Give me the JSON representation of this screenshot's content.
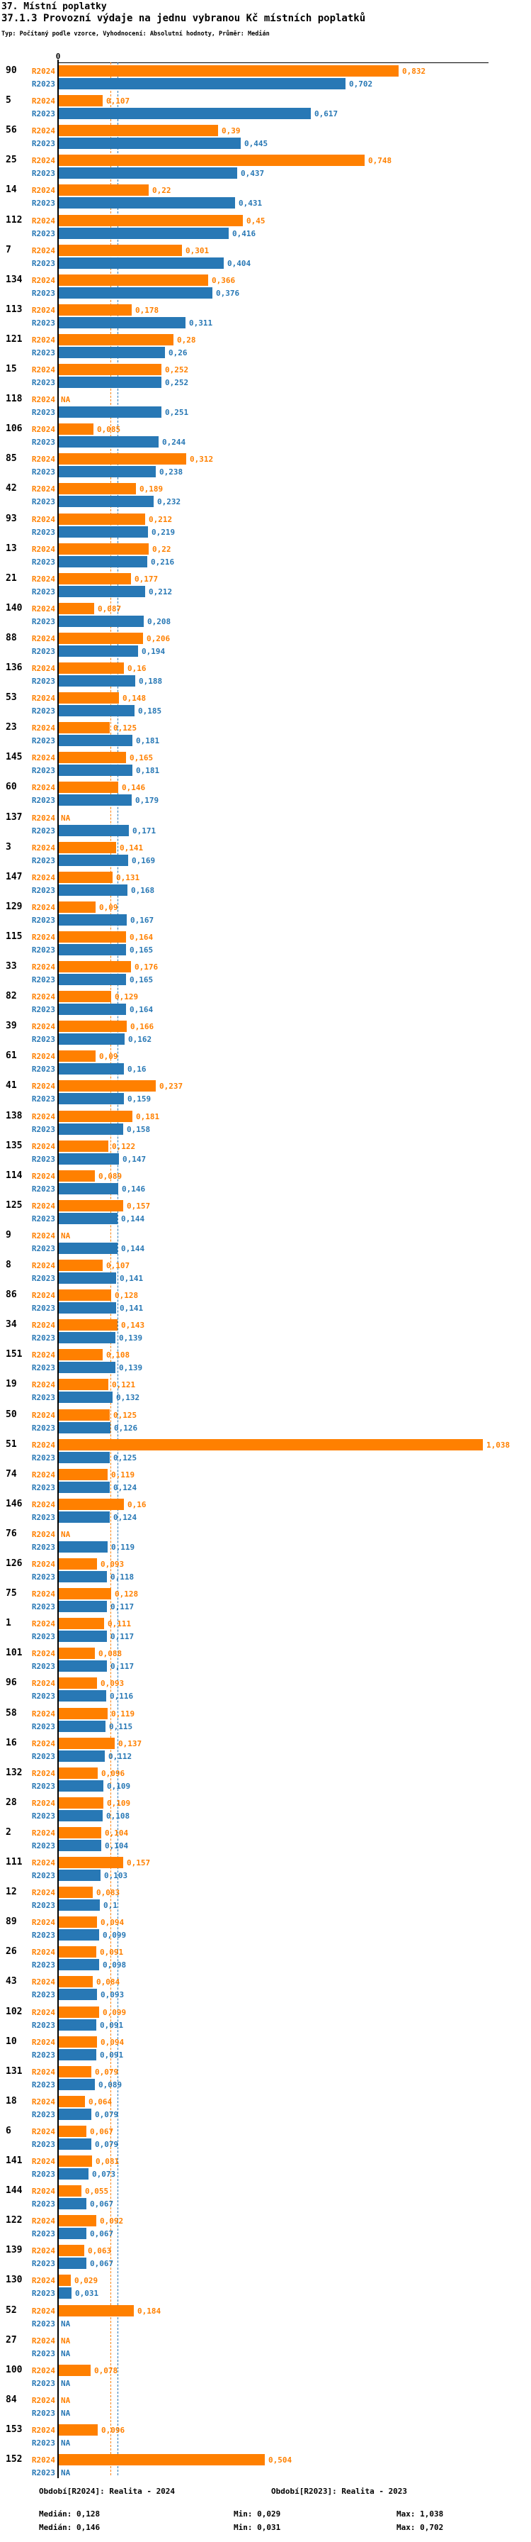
{
  "header": {
    "title1": "37. Místní poplatky",
    "title2": "37.1.3 Provozní výdaje na jednu vybranou Kč místních poplatků",
    "subtitle": "Typ: Počítaný podle vzorce, Vyhodnocení: Absolutní hodnoty, Průměr: Medián"
  },
  "axis": {
    "zero_label": "0"
  },
  "colors": {
    "r2024": "#FF8000",
    "r2023": "#2878B5",
    "axis": "#000000"
  },
  "legend": {
    "r2024": {
      "period": "Období[R2024]: Realita - 2024",
      "median": "Medián: 0,128",
      "min": "Min: 0,029",
      "max": "Max: 1,038"
    },
    "r2023": {
      "period": "Období[R2023]: Realita - 2023",
      "median": "Medián: 0,146",
      "min": "Min: 0,031",
      "max": "Max: 0,702"
    }
  },
  "chart_data": {
    "type": "bar",
    "orientation": "horizontal",
    "series_names": [
      "R2024",
      "R2023"
    ],
    "na_label": "NA",
    "xlim": [
      0,
      1.1
    ],
    "medians": {
      "r2024": 0.128,
      "r2023": 0.146
    },
    "entities": [
      {
        "id": "90",
        "v24": 0.832,
        "t24": "0,832",
        "v23": 0.702,
        "t23": "0,702"
      },
      {
        "id": "5",
        "v24": 0.107,
        "t24": "0,107",
        "v23": 0.617,
        "t23": "0,617"
      },
      {
        "id": "56",
        "v24": 0.39,
        "t24": "0,39",
        "v23": 0.445,
        "t23": "0,445"
      },
      {
        "id": "25",
        "v24": 0.748,
        "t24": "0,748",
        "v23": 0.437,
        "t23": "0,437"
      },
      {
        "id": "14",
        "v24": 0.22,
        "t24": "0,22",
        "v23": 0.431,
        "t23": "0,431"
      },
      {
        "id": "112",
        "v24": 0.45,
        "t24": "0,45",
        "v23": 0.416,
        "t23": "0,416"
      },
      {
        "id": "7",
        "v24": 0.301,
        "t24": "0,301",
        "v23": 0.404,
        "t23": "0,404"
      },
      {
        "id": "134",
        "v24": 0.366,
        "t24": "0,366",
        "v23": 0.376,
        "t23": "0,376"
      },
      {
        "id": "113",
        "v24": 0.178,
        "t24": "0,178",
        "v23": 0.311,
        "t23": "0,311"
      },
      {
        "id": "121",
        "v24": 0.28,
        "t24": "0,28",
        "v23": 0.26,
        "t23": "0,26"
      },
      {
        "id": "15",
        "v24": 0.252,
        "t24": "0,252",
        "v23": 0.252,
        "t23": "0,252"
      },
      {
        "id": "118",
        "v24": null,
        "t24": "NA",
        "v23": 0.251,
        "t23": "0,251"
      },
      {
        "id": "106",
        "v24": 0.085,
        "t24": "0,085",
        "v23": 0.244,
        "t23": "0,244"
      },
      {
        "id": "85",
        "v24": 0.312,
        "t24": "0,312",
        "v23": 0.238,
        "t23": "0,238"
      },
      {
        "id": "42",
        "v24": 0.189,
        "t24": "0,189",
        "v23": 0.232,
        "t23": "0,232"
      },
      {
        "id": "93",
        "v24": 0.212,
        "t24": "0,212",
        "v23": 0.219,
        "t23": "0,219"
      },
      {
        "id": "13",
        "v24": 0.22,
        "t24": "0,22",
        "v23": 0.216,
        "t23": "0,216"
      },
      {
        "id": "21",
        "v24": 0.177,
        "t24": "0,177",
        "v23": 0.212,
        "t23": "0,212"
      },
      {
        "id": "140",
        "v24": 0.087,
        "t24": "0,087",
        "v23": 0.208,
        "t23": "0,208"
      },
      {
        "id": "88",
        "v24": 0.206,
        "t24": "0,206",
        "v23": 0.194,
        "t23": "0,194"
      },
      {
        "id": "136",
        "v24": 0.16,
        "t24": "0,16",
        "v23": 0.188,
        "t23": "0,188"
      },
      {
        "id": "53",
        "v24": 0.148,
        "t24": "0,148",
        "v23": 0.185,
        "t23": "0,185"
      },
      {
        "id": "23",
        "v24": 0.125,
        "t24": "0,125",
        "v23": 0.181,
        "t23": "0,181"
      },
      {
        "id": "145",
        "v24": 0.165,
        "t24": "0,165",
        "v23": 0.181,
        "t23": "0,181"
      },
      {
        "id": "60",
        "v24": 0.146,
        "t24": "0,146",
        "v23": 0.179,
        "t23": "0,179"
      },
      {
        "id": "137",
        "v24": null,
        "t24": "NA",
        "v23": 0.171,
        "t23": "0,171"
      },
      {
        "id": "3",
        "v24": 0.141,
        "t24": "0,141",
        "v23": 0.169,
        "t23": "0,169"
      },
      {
        "id": "147",
        "v24": 0.131,
        "t24": "0,131",
        "v23": 0.168,
        "t23": "0,168"
      },
      {
        "id": "129",
        "v24": 0.09,
        "t24": "0,09",
        "v23": 0.167,
        "t23": "0,167"
      },
      {
        "id": "115",
        "v24": 0.164,
        "t24": "0,164",
        "v23": 0.165,
        "t23": "0,165"
      },
      {
        "id": "33",
        "v24": 0.176,
        "t24": "0,176",
        "v23": 0.165,
        "t23": "0,165"
      },
      {
        "id": "82",
        "v24": 0.129,
        "t24": "0,129",
        "v23": 0.164,
        "t23": "0,164"
      },
      {
        "id": "39",
        "v24": 0.166,
        "t24": "0,166",
        "v23": 0.162,
        "t23": "0,162"
      },
      {
        "id": "61",
        "v24": 0.09,
        "t24": "0,09",
        "v23": 0.16,
        "t23": "0,16"
      },
      {
        "id": "41",
        "v24": 0.237,
        "t24": "0,237",
        "v23": 0.159,
        "t23": "0,159"
      },
      {
        "id": "138",
        "v24": 0.181,
        "t24": "0,181",
        "v23": 0.158,
        "t23": "0,158"
      },
      {
        "id": "135",
        "v24": 0.122,
        "t24": "0,122",
        "v23": 0.147,
        "t23": "0,147"
      },
      {
        "id": "114",
        "v24": 0.089,
        "t24": "0,089",
        "v23": 0.146,
        "t23": "0,146"
      },
      {
        "id": "125",
        "v24": 0.157,
        "t24": "0,157",
        "v23": 0.144,
        "t23": "0,144"
      },
      {
        "id": "9",
        "v24": null,
        "t24": "NA",
        "v23": 0.144,
        "t23": "0,144"
      },
      {
        "id": "8",
        "v24": 0.107,
        "t24": "0,107",
        "v23": 0.141,
        "t23": "0,141"
      },
      {
        "id": "86",
        "v24": 0.128,
        "t24": "0,128",
        "v23": 0.141,
        "t23": "0,141"
      },
      {
        "id": "34",
        "v24": 0.143,
        "t24": "0,143",
        "v23": 0.139,
        "t23": "0,139"
      },
      {
        "id": "151",
        "v24": 0.108,
        "t24": "0,108",
        "v23": 0.139,
        "t23": "0,139"
      },
      {
        "id": "19",
        "v24": 0.121,
        "t24": "0,121",
        "v23": 0.132,
        "t23": "0,132"
      },
      {
        "id": "50",
        "v24": 0.125,
        "t24": "0,125",
        "v23": 0.126,
        "t23": "0,126"
      },
      {
        "id": "51",
        "v24": 1.038,
        "t24": "1,038",
        "v23": 0.125,
        "t23": "0,125"
      },
      {
        "id": "74",
        "v24": 0.119,
        "t24": "0,119",
        "v23": 0.124,
        "t23": "0,124"
      },
      {
        "id": "146",
        "v24": 0.16,
        "t24": "0,16",
        "v23": 0.124,
        "t23": "0,124"
      },
      {
        "id": "76",
        "v24": null,
        "t24": "NA",
        "v23": 0.119,
        "t23": "0,119"
      },
      {
        "id": "126",
        "v24": 0.093,
        "t24": "0,093",
        "v23": 0.118,
        "t23": "0,118"
      },
      {
        "id": "75",
        "v24": 0.128,
        "t24": "0,128",
        "v23": 0.117,
        "t23": "0,117"
      },
      {
        "id": "1",
        "v24": 0.111,
        "t24": "0,111",
        "v23": 0.117,
        "t23": "0,117"
      },
      {
        "id": "101",
        "v24": 0.088,
        "t24": "0,088",
        "v23": 0.117,
        "t23": "0,117"
      },
      {
        "id": "96",
        "v24": 0.093,
        "t24": "0,093",
        "v23": 0.116,
        "t23": "0,116"
      },
      {
        "id": "58",
        "v24": 0.119,
        "t24": "0,119",
        "v23": 0.115,
        "t23": "0,115"
      },
      {
        "id": "16",
        "v24": 0.137,
        "t24": "0,137",
        "v23": 0.112,
        "t23": "0,112"
      },
      {
        "id": "132",
        "v24": 0.096,
        "t24": "0,096",
        "v23": 0.109,
        "t23": "0,109"
      },
      {
        "id": "28",
        "v24": 0.109,
        "t24": "0,109",
        "v23": 0.108,
        "t23": "0,108"
      },
      {
        "id": "2",
        "v24": 0.104,
        "t24": "0,104",
        "v23": 0.104,
        "t23": "0,104"
      },
      {
        "id": "111",
        "v24": 0.157,
        "t24": "0,157",
        "v23": 0.103,
        "t23": "0,103"
      },
      {
        "id": "12",
        "v24": 0.083,
        "t24": "0,083",
        "v23": 0.1,
        "t23": "0,1"
      },
      {
        "id": "89",
        "v24": 0.094,
        "t24": "0,094",
        "v23": 0.099,
        "t23": "0,099"
      },
      {
        "id": "26",
        "v24": 0.091,
        "t24": "0,091",
        "v23": 0.098,
        "t23": "0,098"
      },
      {
        "id": "43",
        "v24": 0.084,
        "t24": "0,084",
        "v23": 0.093,
        "t23": "0,093"
      },
      {
        "id": "102",
        "v24": 0.099,
        "t24": "0,099",
        "v23": 0.091,
        "t23": "0,091"
      },
      {
        "id": "10",
        "v24": 0.094,
        "t24": "0,094",
        "v23": 0.091,
        "t23": "0,091"
      },
      {
        "id": "131",
        "v24": 0.079,
        "t24": "0,079",
        "v23": 0.089,
        "t23": "0,089"
      },
      {
        "id": "18",
        "v24": 0.064,
        "t24": "0,064",
        "v23": 0.079,
        "t23": "0,079"
      },
      {
        "id": "6",
        "v24": 0.067,
        "t24": "0,067",
        "v23": 0.079,
        "t23": "0,079"
      },
      {
        "id": "141",
        "v24": 0.081,
        "t24": "0,081",
        "v23": 0.073,
        "t23": "0,073"
      },
      {
        "id": "144",
        "v24": 0.055,
        "t24": "0,055",
        "v23": 0.067,
        "t23": "0,067"
      },
      {
        "id": "122",
        "v24": 0.092,
        "t24": "0,092",
        "v23": 0.067,
        "t23": "0,067"
      },
      {
        "id": "139",
        "v24": 0.063,
        "t24": "0,063",
        "v23": 0.067,
        "t23": "0,067"
      },
      {
        "id": "130",
        "v24": 0.029,
        "t24": "0,029",
        "v23": 0.031,
        "t23": "0,031"
      },
      {
        "id": "52",
        "v24": 0.184,
        "t24": "0,184",
        "v23": null,
        "t23": "NA"
      },
      {
        "id": "27",
        "v24": null,
        "t24": "NA",
        "v23": null,
        "t23": "NA"
      },
      {
        "id": "100",
        "v24": 0.078,
        "t24": "0,078",
        "v23": null,
        "t23": "NA"
      },
      {
        "id": "84",
        "v24": null,
        "t24": "NA",
        "v23": null,
        "t23": "NA"
      },
      {
        "id": "153",
        "v24": 0.096,
        "t24": "0,096",
        "v23": null,
        "t23": "NA"
      },
      {
        "id": "152",
        "v24": 0.504,
        "t24": "0,504",
        "v23": null,
        "t23": "NA"
      }
    ]
  }
}
